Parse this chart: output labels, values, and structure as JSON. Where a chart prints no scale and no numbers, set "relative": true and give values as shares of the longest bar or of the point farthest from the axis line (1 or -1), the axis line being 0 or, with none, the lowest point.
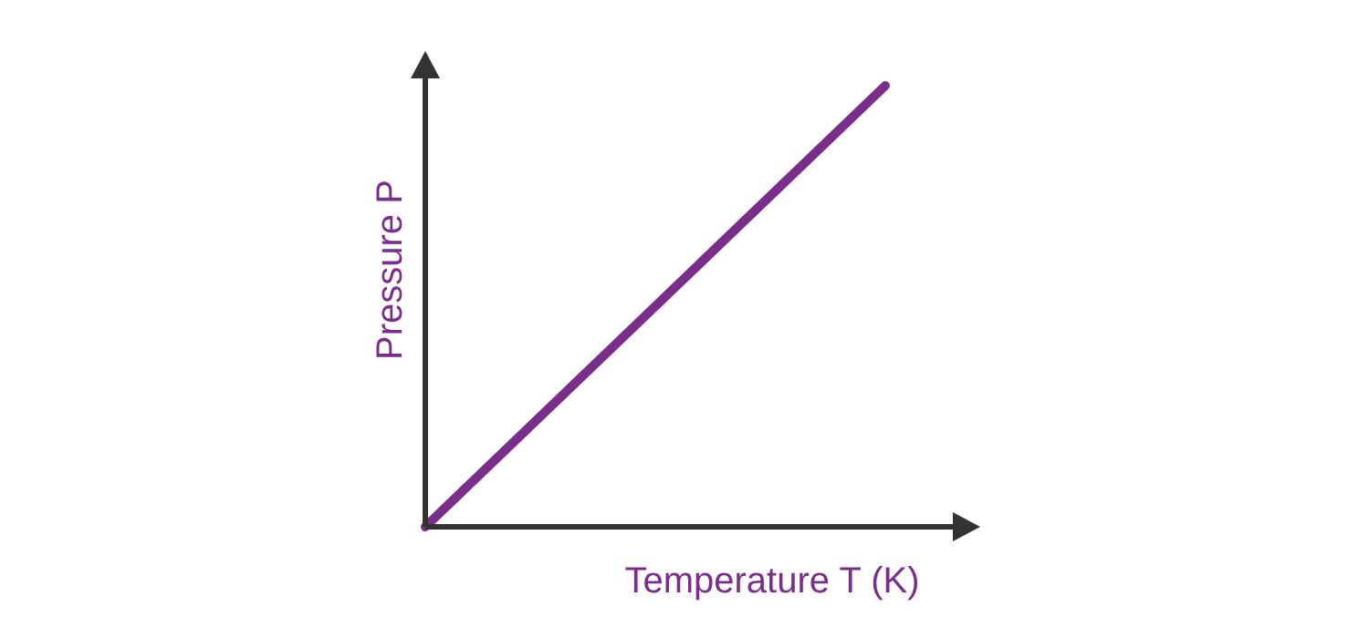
{
  "chart_data": {
    "type": "line",
    "relative": true,
    "xlabel": "Temperature T (K)",
    "ylabel": "Pressure P",
    "categories": [
      null,
      null
    ],
    "series": [
      {
        "color": "#7b2d8b",
        "values": [
          0,
          1
        ]
      }
    ],
    "marker": "none",
    "line_style": "solid"
  }
}
